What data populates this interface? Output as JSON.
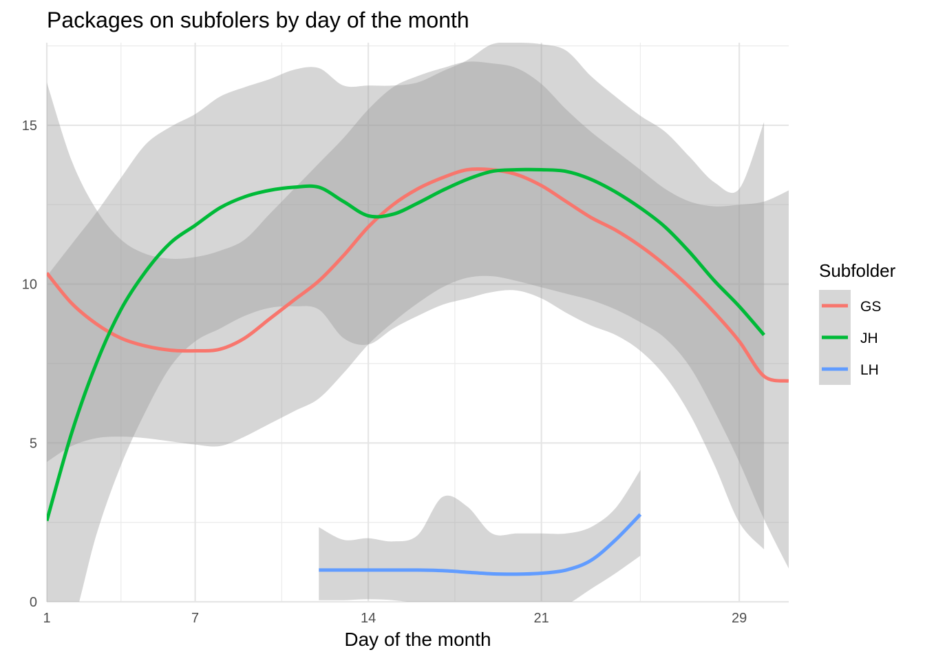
{
  "chart_data": {
    "type": "line",
    "title": "Packages on subfolers by day of the month",
    "xlabel": "Day of the month",
    "ylabel": "",
    "xlim": [
      1,
      31
    ],
    "ylim": [
      0,
      17.6
    ],
    "x_ticks": [
      1,
      7,
      14,
      21,
      29
    ],
    "x_tick_labels": [
      "1",
      "7",
      "14",
      "21",
      "29"
    ],
    "y_ticks": [
      0,
      5,
      10,
      15
    ],
    "y_tick_labels": [
      "0",
      "5",
      "10",
      "15"
    ],
    "grid": true,
    "legend": {
      "title": "Subfolder",
      "position": "right"
    },
    "series": [
      {
        "name": "GS",
        "color": "#F8766D",
        "x": [
          1,
          2,
          3,
          4,
          5,
          6,
          7,
          8,
          9,
          10,
          11,
          12,
          13,
          14,
          15,
          16,
          17,
          18,
          19,
          20,
          21,
          22,
          23,
          24,
          25,
          26,
          27,
          28,
          29,
          30,
          31
        ],
        "y": [
          10.35,
          9.4,
          8.75,
          8.3,
          8.05,
          7.92,
          7.9,
          7.95,
          8.3,
          8.9,
          9.5,
          10.1,
          10.9,
          11.8,
          12.5,
          13.0,
          13.35,
          13.6,
          13.6,
          13.45,
          13.1,
          12.6,
          12.1,
          11.7,
          11.2,
          10.6,
          9.9,
          9.1,
          8.2,
          7.1,
          6.95
        ],
        "lower": [
          4.4,
          4.9,
          5.15,
          5.2,
          5.15,
          5.05,
          4.95,
          4.9,
          5.2,
          5.6,
          6.0,
          6.4,
          7.2,
          8.1,
          8.8,
          9.4,
          9.9,
          10.2,
          10.25,
          10.1,
          9.9,
          9.7,
          9.5,
          9.2,
          8.8,
          8.3,
          7.4,
          6.0,
          4.4,
          2.6,
          1.05
        ],
        "upper": [
          16.35,
          13.9,
          12.35,
          11.4,
          10.95,
          10.8,
          10.85,
          11.05,
          11.4,
          12.2,
          13.0,
          13.8,
          14.6,
          15.5,
          16.2,
          16.55,
          16.8,
          17.0,
          16.95,
          16.8,
          16.3,
          15.5,
          14.8,
          14.2,
          13.6,
          13.0,
          12.6,
          12.45,
          12.5,
          12.6,
          12.95
        ]
      },
      {
        "name": "JH",
        "color": "#00BA38",
        "x": [
          1,
          2,
          3,
          4,
          5,
          6,
          7,
          8,
          9,
          10,
          11,
          12,
          13,
          14,
          15,
          16,
          17,
          18,
          19,
          20,
          21,
          22,
          23,
          24,
          25,
          26,
          27,
          28,
          29,
          30
        ],
        "y": [
          2.55,
          5.3,
          7.5,
          9.2,
          10.4,
          11.3,
          11.85,
          12.4,
          12.75,
          12.95,
          13.05,
          13.05,
          12.6,
          12.15,
          12.2,
          12.55,
          12.95,
          13.3,
          13.55,
          13.6,
          13.6,
          13.55,
          13.3,
          12.9,
          12.4,
          11.8,
          11.0,
          10.1,
          9.3,
          8.4
        ],
        "lower": [
          -2.0,
          -0.8,
          2.1,
          4.3,
          6.0,
          7.4,
          8.2,
          8.6,
          9.0,
          9.25,
          9.3,
          9.2,
          8.3,
          8.1,
          8.6,
          9.0,
          9.35,
          9.55,
          9.75,
          9.8,
          9.55,
          9.1,
          8.7,
          8.4,
          7.9,
          7.1,
          5.9,
          4.3,
          2.5,
          1.65
        ],
        "upper": [
          10.25,
          11.25,
          12.25,
          13.35,
          14.4,
          14.95,
          15.35,
          15.9,
          16.2,
          16.45,
          16.75,
          16.8,
          16.25,
          16.25,
          16.25,
          16.35,
          16.7,
          17.05,
          17.55,
          17.6,
          17.55,
          17.35,
          16.55,
          15.9,
          15.3,
          14.8,
          14.0,
          13.2,
          13.0,
          15.1
        ]
      },
      {
        "name": "LH",
        "color": "#619CFF",
        "x": [
          12,
          13,
          14,
          15,
          16,
          17,
          18,
          19,
          20,
          21,
          22,
          23,
          24,
          25
        ],
        "y": [
          1.0,
          1.0,
          1.0,
          1.0,
          1.0,
          0.98,
          0.93,
          0.88,
          0.87,
          0.9,
          1.0,
          1.3,
          1.95,
          2.75
        ],
        "lower": [
          0.05,
          0.05,
          0.08,
          0.05,
          -0.05,
          -0.2,
          -0.35,
          -0.4,
          -0.4,
          -0.4,
          -0.1,
          0.4,
          0.9,
          1.45
        ],
        "upper": [
          2.35,
          1.95,
          2.0,
          1.9,
          2.1,
          3.3,
          3.0,
          2.15,
          2.15,
          2.15,
          2.15,
          2.35,
          2.95,
          4.15
        ]
      }
    ]
  }
}
